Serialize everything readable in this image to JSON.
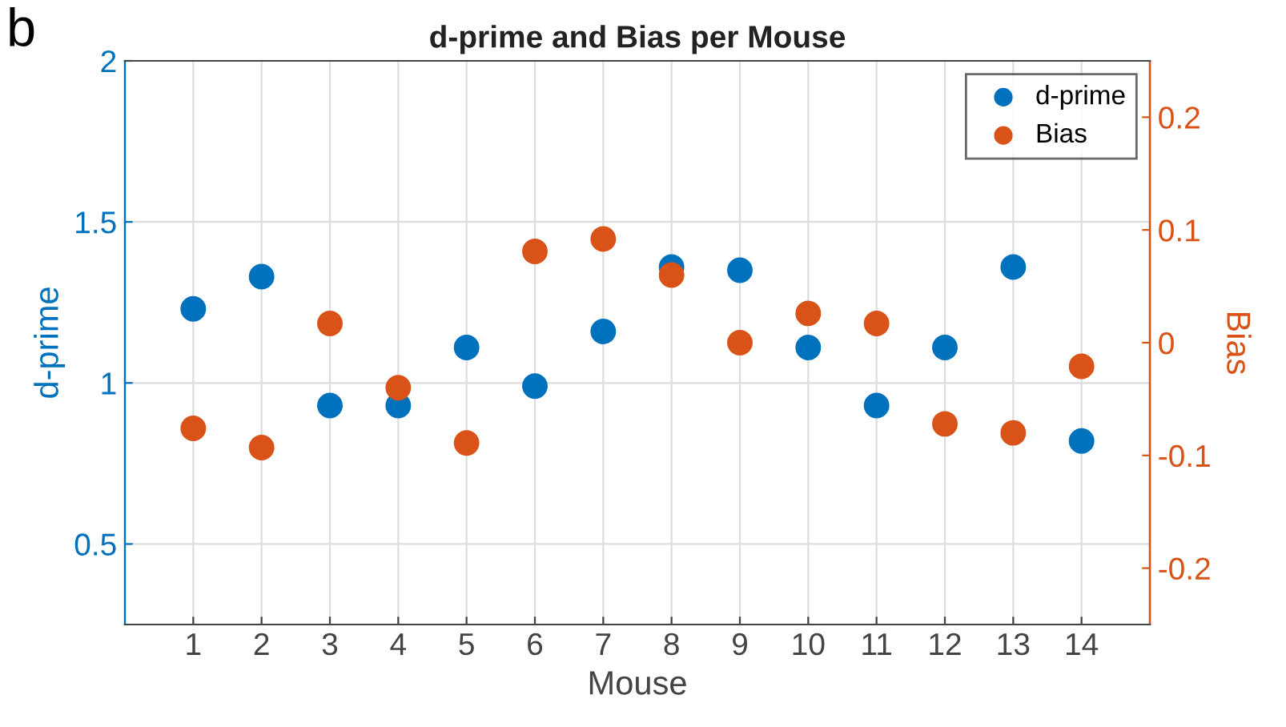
{
  "chart_data": {
    "type": "scatter",
    "title": "d-prime and Bias per Mouse",
    "xlabel": "Mouse",
    "ylabel": "d-prime",
    "y2label": "Bias",
    "annotations": [
      "b"
    ],
    "x": [
      1,
      2,
      3,
      4,
      5,
      6,
      7,
      8,
      9,
      10,
      11,
      12,
      13,
      14
    ],
    "series": [
      {
        "name": "d-prime",
        "color": "#0072bd",
        "values": [
          1.23,
          1.33,
          0.93,
          0.93,
          1.11,
          0.99,
          1.16,
          1.36,
          1.35,
          1.11,
          0.93,
          1.11,
          1.36,
          0.82
        ]
      },
      {
        "name": "Bias",
        "color": "#d95319",
        "axis": "y2",
        "values": [
          -0.076,
          -0.093,
          0.017,
          -0.04,
          -0.089,
          0.081,
          0.092,
          0.06,
          0.0,
          0.026,
          0.017,
          -0.072,
          -0.08,
          -0.021
        ]
      }
    ],
    "xlim": [
      0,
      15
    ],
    "xticks": [
      1,
      2,
      3,
      4,
      5,
      6,
      7,
      8,
      9,
      10,
      11,
      12,
      13,
      14
    ],
    "ylim": [
      0.25,
      2
    ],
    "yticks": [
      0.5,
      1,
      1.5,
      2
    ],
    "y2lim": [
      -0.25,
      0.25
    ],
    "y2ticks": [
      -0.2,
      -0.1,
      0,
      0.1,
      0.2
    ],
    "grid": true,
    "legend": "top right",
    "marker": "circle"
  }
}
